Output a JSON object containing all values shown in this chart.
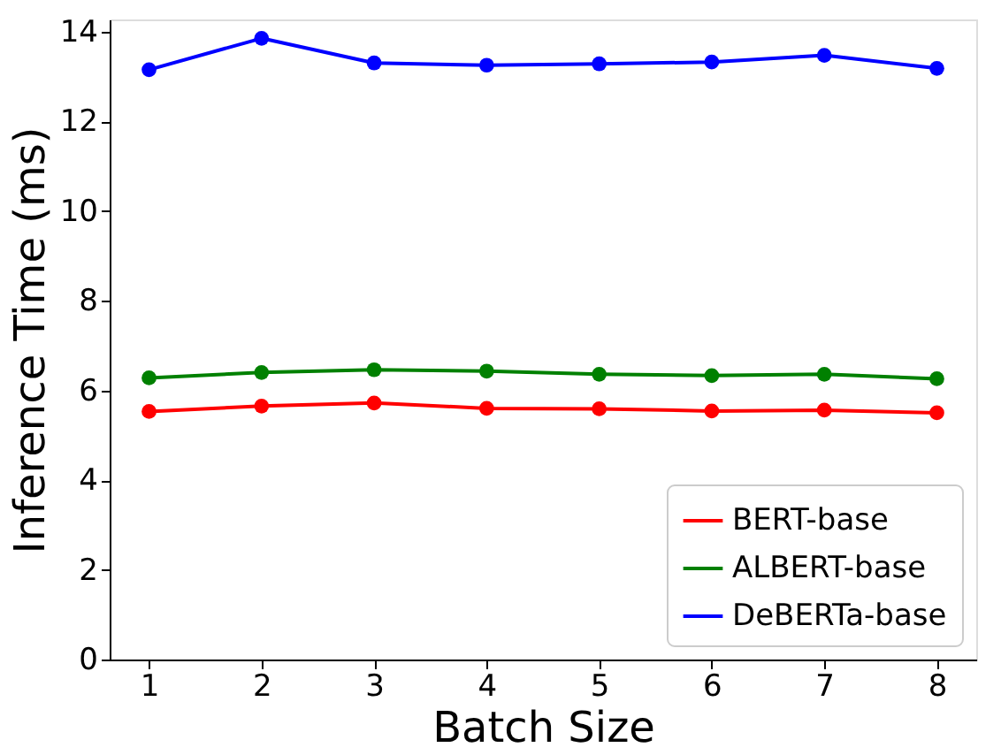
{
  "chart_data": {
    "type": "line",
    "xlabel": "Batch Size",
    "ylabel": "Inference Time (ms)",
    "x": [
      1,
      2,
      3,
      4,
      5,
      6,
      7,
      8
    ],
    "xlim": [
      0.65,
      8.35
    ],
    "xticks": [
      1,
      2,
      3,
      4,
      5,
      6,
      7,
      8
    ],
    "ylim": [
      0,
      14.27
    ],
    "yticks": [
      0,
      2,
      4,
      6,
      8,
      10,
      12,
      14
    ],
    "series": [
      {
        "name": "BERT-base",
        "color": "#ff0000",
        "values": [
          5.53,
          5.65,
          5.72,
          5.6,
          5.59,
          5.54,
          5.56,
          5.5
        ]
      },
      {
        "name": "ALBERT-base",
        "color": "#008000",
        "values": [
          6.28,
          6.4,
          6.46,
          6.43,
          6.36,
          6.33,
          6.36,
          6.26
        ]
      },
      {
        "name": "DeBERTa-base",
        "color": "#0000ff",
        "values": [
          13.15,
          13.85,
          13.3,
          13.25,
          13.28,
          13.32,
          13.47,
          13.18
        ]
      }
    ],
    "marker": "circle",
    "line_style": "solid",
    "legend": "bottom right",
    "grid": false
  }
}
